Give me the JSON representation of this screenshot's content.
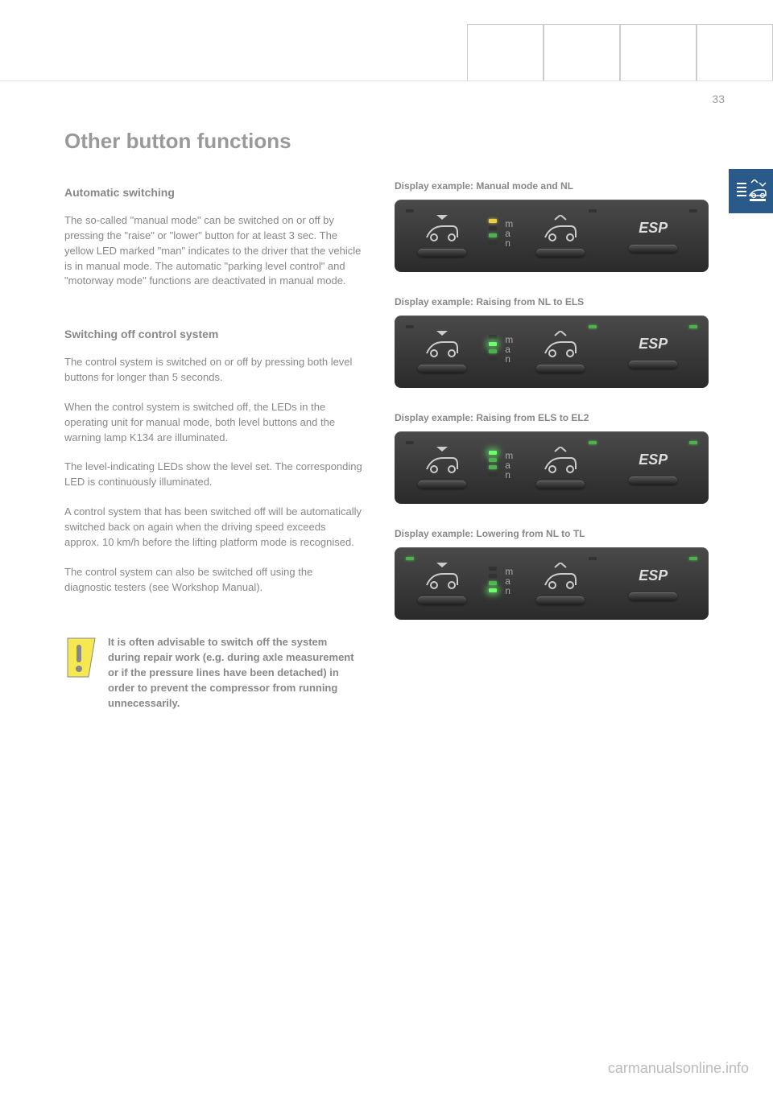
{
  "page_number": "33",
  "title": "Other button functions",
  "sections": [
    {
      "heading": "Automatic switching",
      "paragraphs": [
        "The so-called \"manual mode\" can be switched on or off by pressing the \"raise\" or \"lower\" button for at least 3 sec. The yellow LED marked \"man\" indicates to the driver that the vehicle is in manual mode.\nThe automatic \"parking level control\" and \"motorway mode\" functions are deactivated in manual mode."
      ]
    },
    {
      "heading": "Switching off control system",
      "paragraphs": [
        "The control system is switched on or off by pressing both level buttons for longer than 5 seconds.",
        "When the control system is switched off, the LEDs in the operating unit for manual mode, both level buttons and the warning lamp K134 are illuminated.",
        "The level-indicating LEDs show the level set. The corresponding LED is continuously illuminated.",
        "A control system that has been switched off will be automatically switched back on again when the driving speed exceeds approx. 10 km/h before the lifting platform mode is recognised.",
        "The control system can also be switched off using the diagnostic testers (see Workshop Manual)."
      ]
    }
  ],
  "note": "It is often advisable to switch off the system during repair work (e.g. during axle measurement or if the pressure lines have been detached) in order to prevent the compressor from running unnecessarily.",
  "displays": [
    {
      "caption": "Display example: Manual mode and NL",
      "lower_corner": "off",
      "raise_corner": "off",
      "esp_corner": "off",
      "leds_left": [
        "yellow",
        "off",
        "green",
        "off"
      ],
      "leds_right": [
        "off",
        "off",
        "off",
        "off"
      ]
    },
    {
      "caption": "Display example: Raising from NL to ELS",
      "lower_corner": "off",
      "raise_corner": "on",
      "esp_corner": "on",
      "leds_left": [
        "off",
        "green-glow",
        "green",
        "off"
      ],
      "leds_right": [
        "off",
        "off",
        "off",
        "off"
      ]
    },
    {
      "caption": "Display example: Raising from ELS to EL2",
      "lower_corner": "off",
      "raise_corner": "on",
      "esp_corner": "on",
      "leds_left": [
        "green-glow",
        "green",
        "green",
        "off"
      ],
      "leds_right": [
        "off",
        "off",
        "off",
        "off"
      ]
    },
    {
      "caption": "Display example: Lowering from NL to TL",
      "lower_corner": "on",
      "raise_corner": "off",
      "esp_corner": "on",
      "leds_left": [
        "off",
        "off",
        "green",
        "green-glow"
      ],
      "leds_right": [
        "off",
        "off",
        "off",
        "off"
      ]
    }
  ],
  "man_letters": [
    "m",
    "a",
    "n"
  ],
  "esp_label": "ESP",
  "watermark": "carmanualsonline.info",
  "colors": {
    "page_bg": "#ffffff",
    "text": "#888888",
    "heading": "#999999",
    "panel_top": "#4a4a4a",
    "panel_bottom": "#2a2a2a",
    "led_yellow": "#e8d040",
    "led_green": "#4eb04e",
    "led_green_glow": "#6eff6e",
    "side_icon_bg": "#2a5a8a",
    "note_icon_fill": "#f5e850"
  }
}
